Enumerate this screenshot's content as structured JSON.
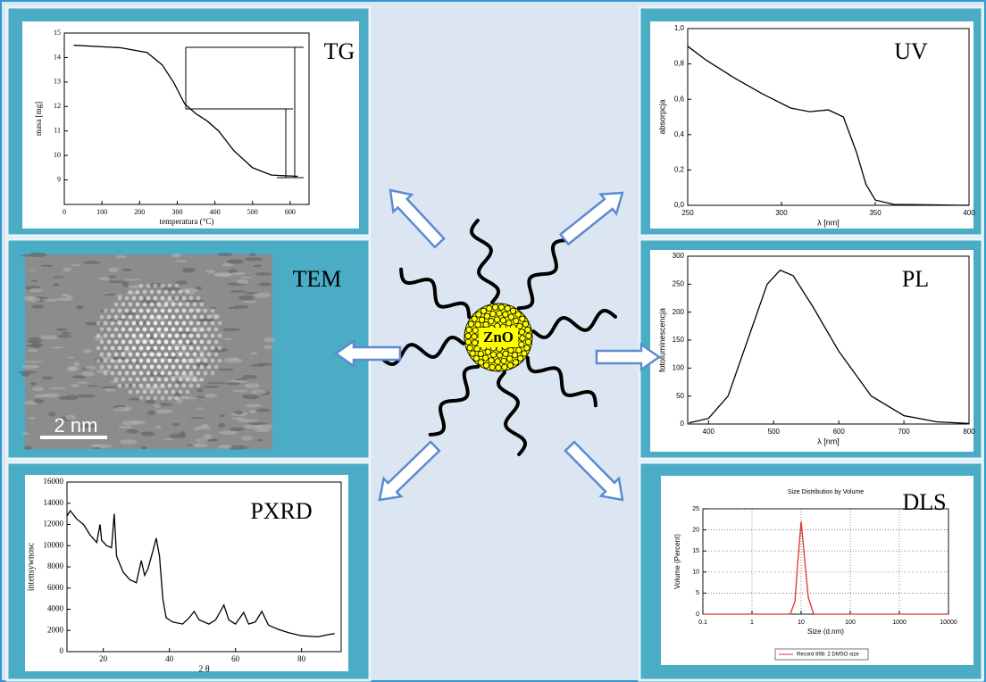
{
  "center": {
    "label": "ZnO"
  },
  "tem": {
    "label": "TEM",
    "scale_bar": "2 nm"
  },
  "panels": [
    {
      "type": "line",
      "label": "TG",
      "xlabel": "temperatura (°C)",
      "ylabel": "masa [mg]",
      "color": "#000000",
      "log": false,
      "grid": false,
      "xlim": [
        0,
        650
      ],
      "ylim": [
        8,
        15
      ],
      "xticks": [
        0,
        100,
        200,
        300,
        400,
        500,
        600
      ],
      "yticks": [
        9,
        10,
        11,
        12,
        13,
        14,
        15
      ],
      "x": [
        25,
        150,
        220,
        260,
        290,
        320,
        350,
        380,
        410,
        450,
        500,
        550,
        620
      ],
      "values": [
        14.5,
        14.4,
        14.2,
        13.7,
        13.0,
        12.1,
        11.7,
        11.4,
        11.0,
        10.2,
        9.5,
        9.2,
        9.15
      ]
    },
    {
      "type": "line",
      "label": "UV",
      "xlabel": "λ [nm]",
      "ylabel": "absorpcja",
      "color": "#000000",
      "log": false,
      "grid": false,
      "xlim": [
        250,
        400
      ],
      "ylim": [
        0,
        1
      ],
      "xticks": [
        250,
        300,
        350,
        400
      ],
      "yticks": [
        {
          "value": 0,
          "label": "0,0"
        },
        {
          "value": 0.2,
          "label": "0,2"
        },
        {
          "value": 0.4,
          "label": "0,4"
        },
        {
          "value": 0.6,
          "label": "0,6"
        },
        {
          "value": 0.8,
          "label": "0,8"
        },
        {
          "value": 1,
          "label": "1,0"
        }
      ],
      "x": [
        250,
        260,
        275,
        290,
        305,
        315,
        325,
        333,
        340,
        345,
        350,
        360,
        400
      ],
      "values": [
        0.9,
        0.82,
        0.72,
        0.63,
        0.55,
        0.53,
        0.54,
        0.5,
        0.3,
        0.12,
        0.03,
        0.005,
        0
      ]
    },
    {
      "type": "line",
      "label": "PL",
      "xlabel": "λ [nm]",
      "ylabel": "fotoluminescencja",
      "color": "#000000",
      "log": false,
      "grid": false,
      "xlim": [
        368,
        800
      ],
      "ylim": [
        0,
        300
      ],
      "xticks": [
        400,
        500,
        600,
        700,
        800
      ],
      "yticks": [
        0,
        50,
        100,
        150,
        200,
        250,
        300
      ],
      "x": [
        370,
        400,
        430,
        460,
        490,
        510,
        530,
        560,
        600,
        650,
        700,
        750,
        800
      ],
      "values": [
        2,
        10,
        50,
        150,
        250,
        275,
        265,
        210,
        130,
        50,
        15,
        4,
        1
      ]
    },
    {
      "type": "line",
      "label": "PXRD",
      "xlabel": "2 θ",
      "ylabel": "intensywnosc",
      "color": "#000000",
      "log": false,
      "grid": false,
      "xlim": [
        9,
        92
      ],
      "ylim": [
        0,
        16000
      ],
      "xticks": [
        20,
        40,
        60,
        80
      ],
      "yticks": [
        0,
        2000,
        4000,
        6000,
        8000,
        10000,
        12000,
        14000,
        16000
      ],
      "x": [
        9,
        10,
        12,
        14,
        16,
        18,
        19,
        19.5,
        21,
        22.5,
        23.3,
        24,
        26,
        28,
        30,
        31.5,
        32.5,
        33.5,
        35,
        36,
        37,
        38,
        39,
        41,
        44,
        46,
        47.5,
        49,
        52,
        54,
        56.5,
        58,
        60,
        62.5,
        64,
        66,
        68,
        70,
        73,
        76,
        80,
        85,
        88,
        90
      ],
      "values": [
        12800,
        13300,
        12500,
        12000,
        11000,
        10300,
        12000,
        10500,
        10000,
        9800,
        13000,
        9000,
        7500,
        6800,
        6500,
        8600,
        7200,
        7800,
        9500,
        10700,
        9000,
        5000,
        3200,
        2800,
        2600,
        3200,
        3800,
        3000,
        2600,
        3000,
        4400,
        3000,
        2600,
        3700,
        2600,
        2800,
        3800,
        2500,
        2100,
        1800,
        1500,
        1400,
        1600,
        1700
      ]
    },
    {
      "type": "line",
      "label": "DLS",
      "title": "Size Distribution by Volume",
      "xlabel": "Size (d.nm)",
      "ylabel": "Volume (Percent)",
      "legend": "Record 898: 2 DMSO size",
      "color": "#e03030",
      "log": true,
      "grid": true,
      "xlim": [
        0.1,
        10000
      ],
      "ylim": [
        0,
        25
      ],
      "xticks": [
        0.1,
        1,
        10,
        100,
        1000,
        10000
      ],
      "yticks": [
        0,
        5,
        10,
        15,
        20,
        25
      ],
      "x": [
        0.1,
        6,
        7.5,
        8.5,
        10,
        12,
        14,
        18,
        10000
      ],
      "values": [
        0,
        0,
        3,
        12,
        22,
        12,
        4,
        0,
        0
      ]
    }
  ]
}
